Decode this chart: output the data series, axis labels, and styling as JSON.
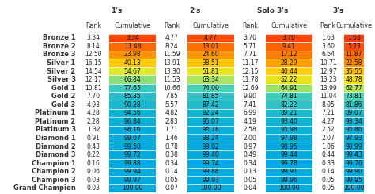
{
  "rows": [
    "Bronze 1",
    "Bronze 2",
    "Bronze 3",
    "Silver 1",
    "Silver 2",
    "Silver 3",
    "Gold 1",
    "Gold 2",
    "Gold 3",
    "Platinum 1",
    "Platinum 2",
    "Platinum 3",
    "Diamond 1",
    "Diamond 2",
    "Diamond 3",
    "Champion 1",
    "Champion 2",
    "Champion 3",
    "Grand Champion"
  ],
  "ones_rank": [
    3.34,
    8.14,
    12.5,
    16.15,
    14.54,
    12.17,
    10.81,
    7.7,
    4.93,
    4.28,
    2.28,
    1.32,
    0.91,
    0.43,
    0.22,
    0.16,
    0.06,
    0.03,
    0.03
  ],
  "ones_cum": [
    3.34,
    11.48,
    23.98,
    40.13,
    54.67,
    66.84,
    77.65,
    85.35,
    90.28,
    94.56,
    96.84,
    98.16,
    99.07,
    99.5,
    99.72,
    99.88,
    99.94,
    99.97,
    100.0
  ],
  "twos_rank": [
    4.77,
    8.24,
    11.59,
    13.91,
    13.3,
    11.53,
    10.66,
    7.85,
    5.57,
    4.82,
    2.83,
    1.71,
    1.46,
    0.78,
    0.38,
    0.34,
    0.14,
    0.05,
    0.07
  ],
  "twos_cum": [
    4.77,
    13.01,
    24.6,
    38.51,
    51.81,
    63.34,
    74.0,
    81.85,
    87.42,
    92.24,
    95.07,
    96.78,
    98.24,
    99.02,
    99.4,
    99.74,
    99.88,
    99.93,
    100.0
  ],
  "solo3s_rank": [
    3.7,
    5.71,
    7.71,
    11.17,
    12.15,
    11.78,
    12.69,
    9.9,
    7.41,
    6.99,
    4.19,
    2.58,
    2.0,
    0.97,
    0.49,
    0.34,
    0.13,
    0.05,
    0.04
  ],
  "solo3s_cum": [
    3.7,
    9.41,
    17.12,
    28.29,
    40.44,
    52.22,
    64.91,
    74.81,
    82.22,
    89.21,
    93.4,
    95.98,
    97.98,
    98.95,
    99.44,
    99.78,
    99.91,
    99.96,
    100.0
  ],
  "threes_rank": [
    1.63,
    3.6,
    6.64,
    10.71,
    12.97,
    13.23,
    13.99,
    11.04,
    8.05,
    7.21,
    4.27,
    2.52,
    2.07,
    1.06,
    0.44,
    0.33,
    0.14,
    0.05,
    0.05
  ],
  "threes_cum": [
    1.63,
    5.23,
    11.87,
    22.58,
    35.55,
    48.78,
    62.77,
    73.81,
    81.86,
    89.07,
    93.34,
    95.86,
    97.93,
    98.99,
    99.43,
    99.76,
    99.9,
    99.95,
    100.0
  ],
  "col_headers": [
    "1's",
    "2's",
    "Solo 3's",
    "3's"
  ],
  "sub_headers": [
    "Rank",
    "Cumulative"
  ],
  "cmap_colors": [
    [
      0.0,
      "#FF3300"
    ],
    [
      0.1,
      "#FF6600"
    ],
    [
      0.25,
      "#FF9900"
    ],
    [
      0.45,
      "#FFDD00"
    ],
    [
      0.6,
      "#CCEE44"
    ],
    [
      0.75,
      "#44CCBB"
    ],
    [
      1.0,
      "#00AADD"
    ]
  ]
}
